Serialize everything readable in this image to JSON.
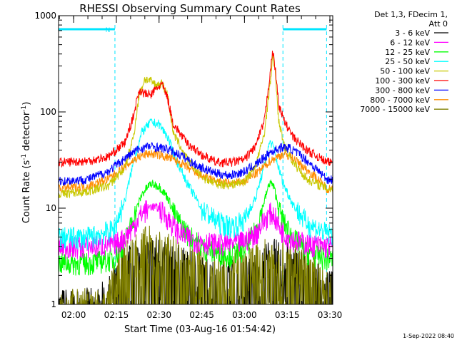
{
  "chart_data": {
    "type": "line",
    "title": "RHESSI Observing Summary Count Rates",
    "xlabel": "Start Time (03-Aug-16 01:54:42)",
    "ylabel_main": "Count Rate (s",
    "ylabel_sup1": "-1",
    "ylabel_mid": " detector",
    "ylabel_sup2": "-1",
    "ylabel_end": ")",
    "yscale": "log",
    "ylim": [
      1,
      1000
    ],
    "xlim": [
      "01:54:42",
      "03:31:00"
    ],
    "x_ticks": [
      "02:00",
      "02:15",
      "02:30",
      "02:45",
      "03:00",
      "03:15",
      "03:30"
    ],
    "y_ticks": [
      "1",
      "10",
      "100",
      "1000"
    ],
    "grid": false,
    "legend_header": [
      "Det 1,3, FDecim 1,",
      "Att 0"
    ],
    "legend_position": "right",
    "footer_timestamp": "1-Sep-2022 08:40",
    "annotation_marker": "N",
    "night_intervals": [
      [
        "01:54:42",
        "02:14:30"
      ],
      [
        "03:13:30",
        "03:28:50"
      ]
    ],
    "series": [
      {
        "name": "3 - 6 keV",
        "color": "#000000",
        "kind": "sparse",
        "x": [
          "01:54:42",
          "02:08:00",
          "02:14:00",
          "02:17:00",
          "02:20:00",
          "02:25:00",
          "02:30:00",
          "02:35:00",
          "02:40:00",
          "02:45:00",
          "02:50:00",
          "02:55:00",
          "03:00:00",
          "03:05:00",
          "03:08:00",
          "03:10:00",
          "03:12:00",
          "03:15:00",
          "03:20:00",
          "03:25:00",
          "03:29:00"
        ],
        "values": [
          1,
          1,
          1.5,
          2.5,
          3,
          3.5,
          3.5,
          3,
          2.5,
          2.2,
          2,
          2,
          2.2,
          2.5,
          3,
          3.5,
          3,
          3,
          2.5,
          2,
          1.5
        ]
      },
      {
        "name": "6 - 12 keV",
        "color": "#ff00ff",
        "kind": "line",
        "x": [
          "01:54:42",
          "02:05:00",
          "02:14:00",
          "02:18:00",
          "02:21:00",
          "02:24:00",
          "02:27:00",
          "02:30:00",
          "02:33:00",
          "02:36:00",
          "02:40:00",
          "02:45:00",
          "02:50:00",
          "02:55:00",
          "03:00:00",
          "03:04:00",
          "03:07:00",
          "03:09:00",
          "03:10:30",
          "03:12:00",
          "03:14:00",
          "03:17:00",
          "03:22:00",
          "03:29:00"
        ],
        "values": [
          4,
          4,
          4.2,
          5,
          6.5,
          9,
          10.5,
          10,
          8,
          6,
          5,
          4.5,
          4.3,
          4.3,
          4.6,
          5.5,
          7.5,
          9,
          8.5,
          6.5,
          5.5,
          4.8,
          4.3,
          4
        ]
      },
      {
        "name": "12 - 25 keV",
        "color": "#00ff00",
        "kind": "line",
        "x": [
          "01:54:42",
          "02:05:00",
          "02:14:00",
          "02:18:00",
          "02:21:00",
          "02:24:00",
          "02:27:00",
          "02:30:00",
          "02:33:00",
          "02:36:00",
          "02:40:00",
          "02:45:00",
          "02:50:00",
          "02:55:00",
          "03:00:00",
          "03:04:00",
          "03:07:00",
          "03:09:00",
          "03:10:30",
          "03:12:00",
          "03:14:00",
          "03:17:00",
          "03:22:00",
          "03:29:00"
        ],
        "values": [
          2.7,
          2.7,
          3,
          4.5,
          8,
          14,
          18,
          17,
          13,
          8,
          5.5,
          4,
          3.5,
          3.3,
          3.8,
          6,
          12,
          19,
          16,
          10,
          7,
          5,
          3.5,
          3
        ]
      },
      {
        "name": "25 - 50 keV",
        "color": "#00ffff",
        "kind": "line",
        "x": [
          "01:54:42",
          "02:05:00",
          "02:14:00",
          "02:18:00",
          "02:21:00",
          "02:24:00",
          "02:27:00",
          "02:30:00",
          "02:33:00",
          "02:36:00",
          "02:40:00",
          "02:45:00",
          "02:50:00",
          "02:55:00",
          "03:00:00",
          "03:04:00",
          "03:07:00",
          "03:09:00",
          "03:10:30",
          "03:12:00",
          "03:14:00",
          "03:17:00",
          "03:22:00",
          "03:29:00"
        ],
        "values": [
          5,
          5,
          6,
          12,
          30,
          62,
          78,
          75,
          55,
          32,
          18,
          10,
          7.5,
          6.5,
          7.5,
          13,
          28,
          50,
          40,
          26,
          17,
          11,
          7,
          5.5
        ]
      },
      {
        "name": "50 - 100 keV",
        "color": "#c8c800",
        "kind": "line",
        "x": [
          "01:54:42",
          "02:05:00",
          "02:12:00",
          "02:18:00",
          "02:21:00",
          "02:23:00",
          "02:25:00",
          "02:27:00",
          "02:29:00",
          "02:31:00",
          "02:33:00",
          "02:35:00",
          "02:40:00",
          "02:45:00",
          "02:50:00",
          "02:55:00",
          "03:00:00",
          "03:04:00",
          "03:07:00",
          "03:09:00",
          "03:10:00",
          "03:11:00",
          "03:12:00",
          "03:14:00",
          "03:17:00",
          "03:22:00",
          "03:29:00"
        ],
        "values": [
          14,
          15,
          17,
          26,
          55,
          150,
          220,
          210,
          190,
          200,
          150,
          60,
          32,
          21,
          18,
          17.5,
          19,
          28,
          60,
          200,
          380,
          220,
          80,
          45,
          30,
          20,
          16
        ]
      },
      {
        "name": "100 - 300 keV",
        "color": "#ff0000",
        "kind": "line",
        "x": [
          "01:54:42",
          "02:05:00",
          "02:12:00",
          "02:18:00",
          "02:21:00",
          "02:23:00",
          "02:25:00",
          "02:27:00",
          "02:29:00",
          "02:31:00",
          "02:33:00",
          "02:35:00",
          "02:40:00",
          "02:45:00",
          "02:50:00",
          "02:55:00",
          "03:00:00",
          "03:04:00",
          "03:07:00",
          "03:09:00",
          "03:10:00",
          "03:11:00",
          "03:12:00",
          "03:14:00",
          "03:17:00",
          "03:22:00",
          "03:29:00"
        ],
        "values": [
          30,
          31,
          34,
          48,
          90,
          170,
          155,
          150,
          175,
          195,
          140,
          75,
          47,
          36,
          30,
          30,
          32,
          45,
          80,
          260,
          430,
          250,
          120,
          80,
          55,
          40,
          30
        ]
      },
      {
        "name": "300 - 800 keV",
        "color": "#0000ff",
        "kind": "line",
        "x": [
          "01:54:42",
          "02:05:00",
          "02:12:00",
          "02:18:00",
          "02:22:00",
          "02:26:00",
          "02:30:00",
          "02:34:00",
          "02:38:00",
          "02:43:00",
          "02:50:00",
          "02:55:00",
          "03:00:00",
          "03:05:00",
          "03:09:00",
          "03:13:00",
          "03:16:00",
          "03:20:00",
          "03:25:00",
          "03:29:00"
        ],
        "values": [
          19,
          20,
          24,
          33,
          40,
          44,
          43,
          40,
          35,
          28,
          23,
          22,
          24,
          30,
          38,
          43,
          42,
          35,
          26,
          20
        ]
      },
      {
        "name": "800 - 7000 keV",
        "color": "#ff8c00",
        "kind": "line",
        "x": [
          "01:54:42",
          "02:05:00",
          "02:12:00",
          "02:18:00",
          "02:22:00",
          "02:26:00",
          "02:30:00",
          "02:34:00",
          "02:38:00",
          "02:43:00",
          "02:50:00",
          "02:55:00",
          "03:00:00",
          "03:05:00",
          "03:09:00",
          "03:13:00",
          "03:16:00",
          "03:20:00",
          "03:25:00",
          "03:29:00"
        ],
        "values": [
          16,
          17,
          20,
          27,
          33,
          37,
          36,
          33,
          29,
          23,
          19,
          18,
          19,
          24,
          31,
          36,
          35,
          28,
          21,
          16
        ]
      },
      {
        "name": "7000 - 15000 keV",
        "color": "#808000",
        "kind": "sparse",
        "x": [
          "01:54:42",
          "02:12:00",
          "02:14:00",
          "02:18:00",
          "02:22:00",
          "02:26:00",
          "02:30:00",
          "02:35:00",
          "02:40:00",
          "02:45:00",
          "02:50:00",
          "02:55:00",
          "03:00:00",
          "03:05:00",
          "03:10:00",
          "03:14:00",
          "03:18:00",
          "03:22:00",
          "03:26:00",
          "03:29:00"
        ],
        "values": [
          1,
          1,
          2,
          3,
          4,
          4.5,
          4,
          3.5,
          3,
          2.8,
          2.5,
          2.5,
          2.8,
          3,
          3.5,
          3.5,
          3,
          2.5,
          2,
          1.5
        ]
      }
    ]
  }
}
